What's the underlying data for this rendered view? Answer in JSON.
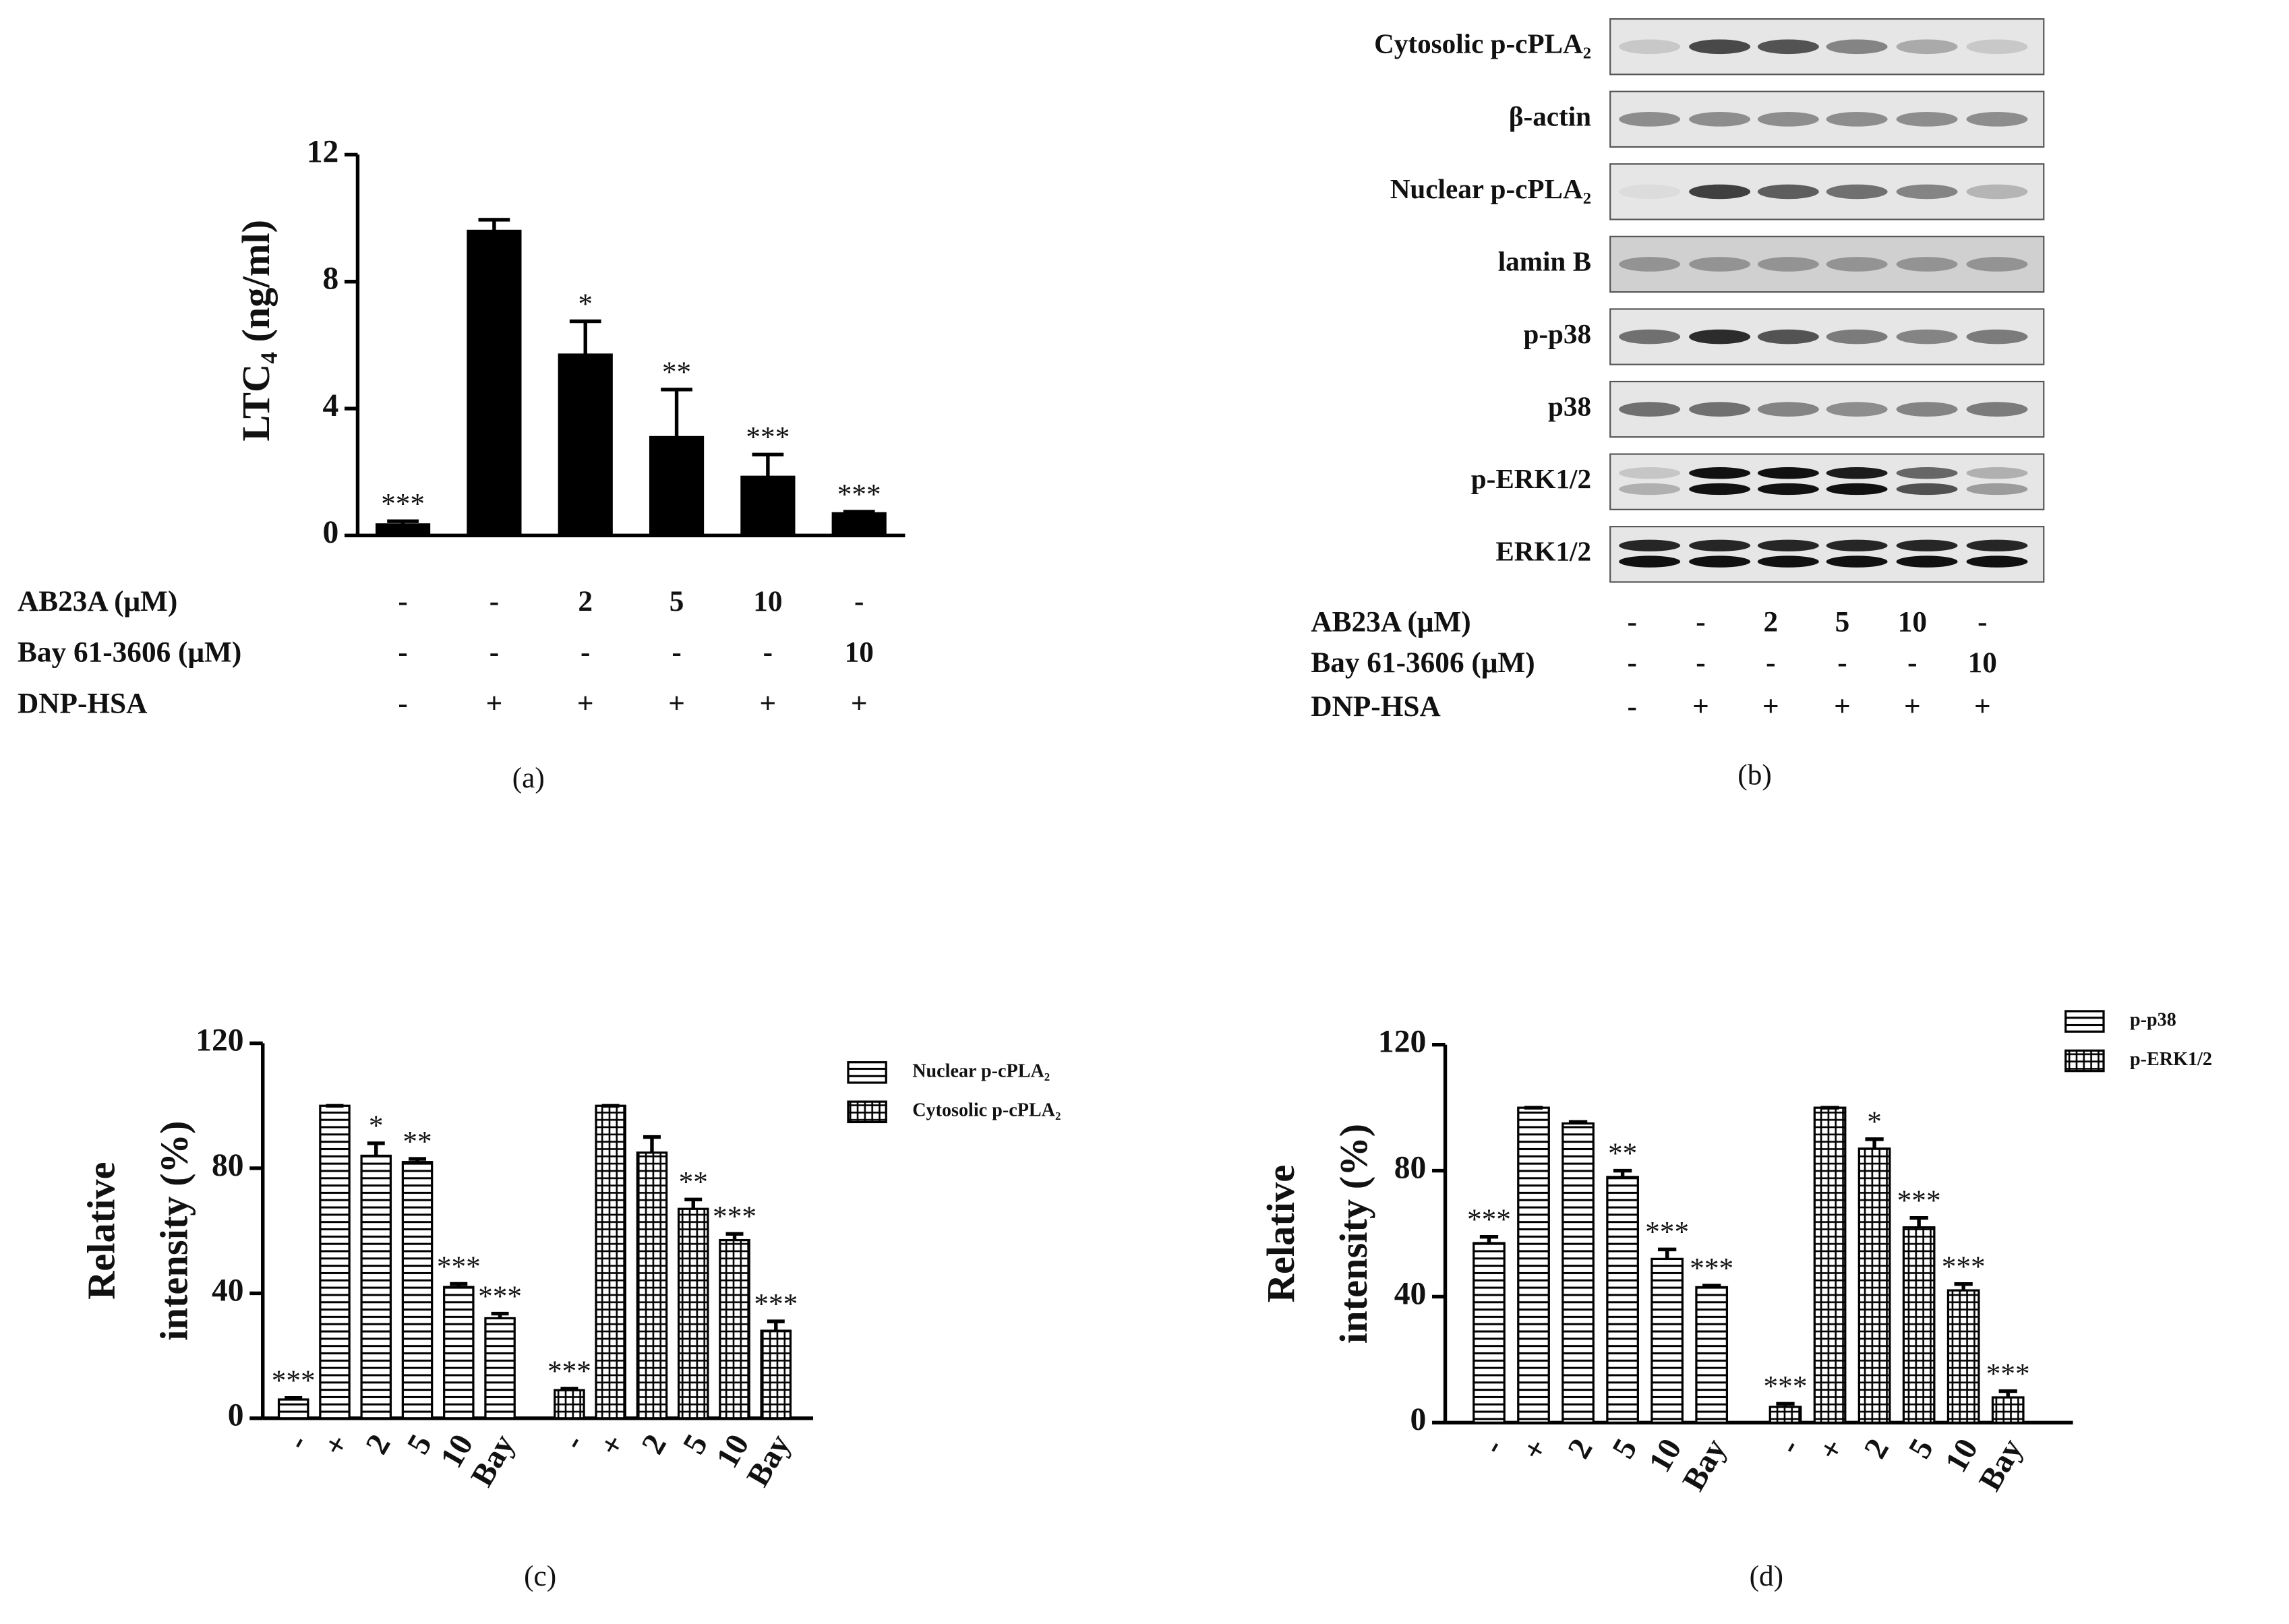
{
  "chart_data": [
    {
      "type": "bar",
      "ylabel": "LTC₄ (ng/ml)",
      "values": [
        0.35,
        9.6,
        5.7,
        3.1,
        1.85,
        0.7
      ],
      "errors": [
        0.1,
        0.35,
        1.05,
        1.5,
        0.7,
        0.05
      ],
      "annotations": [
        "***",
        null,
        "*",
        "**",
        "***",
        "***"
      ],
      "color": "#000000",
      "ylim": [
        0,
        12
      ],
      "yticks": [
        0,
        4,
        8,
        12
      ],
      "treatments": [
        {
          "label": "AB23A (μM)",
          "values": [
            "-",
            "-",
            "2",
            "5",
            "10",
            "-"
          ]
        },
        {
          "label": "Bay 61-3606 (μM)",
          "values": [
            "-",
            "-",
            "-",
            "-",
            "-",
            "10"
          ]
        },
        {
          "label": "DNP-HSA",
          "values": [
            "-",
            "+",
            "+",
            "+",
            "+",
            "+"
          ]
        }
      ],
      "caption": "(a)"
    },
    {
      "type": "bar",
      "ylabel": [
        "Relative",
        "intensity (%)"
      ],
      "categories": [
        "-",
        "+",
        "2",
        "5",
        "10",
        "Bay"
      ],
      "series": [
        {
          "name": "Nuclear p-cPLA₂",
          "hatch": "horizontal",
          "values": [
            6,
            100,
            84,
            82,
            42,
            32
          ],
          "errors": [
            0.5,
            0,
            4,
            1,
            1,
            1.5
          ],
          "annotations": [
            "***",
            null,
            "*",
            "**",
            "***",
            "***"
          ]
        },
        {
          "name": "Cytosolic p-cPLA₂",
          "hatch": "grid",
          "values": [
            9,
            100,
            85,
            67,
            57,
            28
          ],
          "errors": [
            0.5,
            0,
            5,
            3,
            2,
            3
          ],
          "annotations": [
            "***",
            null,
            null,
            "**",
            "***",
            "***"
          ]
        }
      ],
      "ylim": [
        0,
        120
      ],
      "yticks": [
        0,
        40,
        80,
        120
      ],
      "caption": "(c)"
    },
    {
      "type": "bar",
      "ylabel": [
        "Relative",
        "intensity (%)"
      ],
      "categories": [
        "-",
        "+",
        "2",
        "5",
        "10",
        "Bay"
      ],
      "series": [
        {
          "name": "p-p38",
          "hatch": "horizontal",
          "values": [
            57,
            100,
            95,
            78,
            52,
            43
          ],
          "errors": [
            2,
            0,
            0.5,
            2,
            3,
            0.5
          ],
          "annotations": [
            "***",
            null,
            null,
            "**",
            "***",
            "***"
          ]
        },
        {
          "name": "p-ERK1/2",
          "hatch": "grid",
          "values": [
            5,
            100,
            87,
            62,
            42,
            8
          ],
          "errors": [
            1,
            0,
            3,
            3,
            2,
            2
          ],
          "annotations": [
            "***",
            null,
            "*",
            "***",
            "***",
            "***"
          ]
        }
      ],
      "ylim": [
        0,
        120
      ],
      "yticks": [
        0,
        40,
        80,
        120
      ],
      "caption": "(d)"
    }
  ],
  "blot": {
    "labels": [
      "Cytosolic p-cPLA₂",
      "β-actin",
      "Nuclear p-cPLA₂",
      "lamin B",
      "p-p38",
      "p38",
      "p-ERK1/2",
      "ERK1/2"
    ],
    "treatments": [
      {
        "label": "AB23A (μM)",
        "values": [
          "-",
          "-",
          "2",
          "5",
          "10",
          "-"
        ]
      },
      {
        "label": "Bay 61-3606 (μM)",
        "values": [
          "-",
          "-",
          "-",
          "-",
          "-",
          "10"
        ]
      },
      {
        "label": "DNP-HSA",
        "values": [
          "-",
          "+",
          "+",
          "+",
          "+",
          "+"
        ]
      }
    ],
    "caption": "(b)"
  }
}
